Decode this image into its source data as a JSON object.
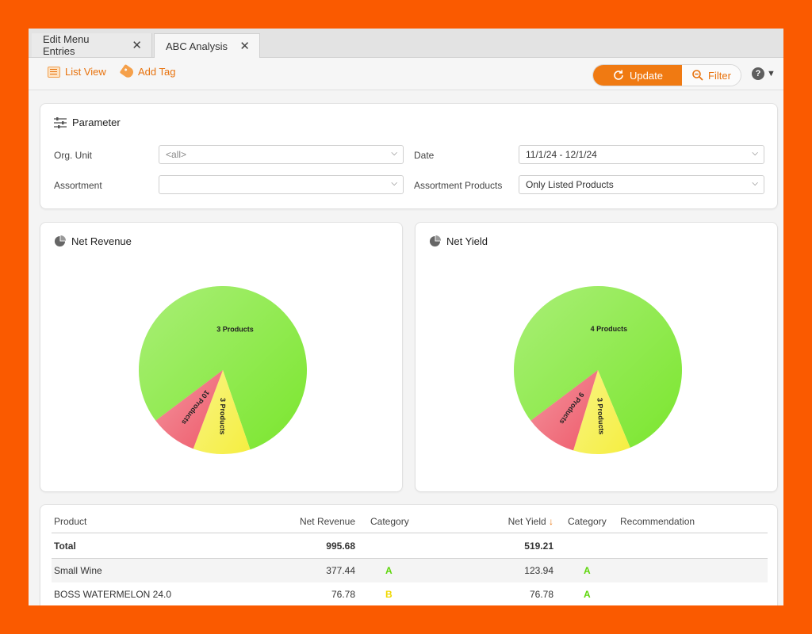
{
  "tabs": [
    {
      "label": "Edit Menu Entries",
      "close": "✕"
    },
    {
      "label": "ABC Analysis",
      "close": "✕"
    }
  ],
  "toolbar": {
    "list_view": "List View",
    "add_tag": "Add Tag",
    "update": "Update",
    "filter": "Filter",
    "help": "?"
  },
  "parameter": {
    "title": "Parameter",
    "org_unit_label": "Org. Unit",
    "org_unit_value": "<all>",
    "date_label": "Date",
    "date_value": "11/1/24 - 12/1/24",
    "assortment_label": "Assortment",
    "assortment_value": "",
    "assortment_products_label": "Assortment Products",
    "assortment_products_value": "Only Listed Products"
  },
  "charts": {
    "net_revenue_title": "Net Revenue",
    "net_yield_title": "Net Yield"
  },
  "colors": {
    "brand": "#f07a12",
    "cat_a": "#7be62e",
    "cat_b": "#f5ee40",
    "cat_c": "#ee5a6a"
  },
  "chart_data": [
    {
      "type": "pie",
      "title": "Net Revenue",
      "slices": [
        {
          "category": "A",
          "label": "3 Products",
          "value": 3,
          "share_pct": 80,
          "color": "#7be62e"
        },
        {
          "category": "B",
          "label": "3 Products",
          "value": 3,
          "share_pct": 11,
          "color": "#f5ee40"
        },
        {
          "category": "C",
          "label": "10 Products",
          "value": 10,
          "share_pct": 9,
          "color": "#ee5a6a"
        }
      ]
    },
    {
      "type": "pie",
      "title": "Net Yield",
      "slices": [
        {
          "category": "A",
          "label": "4 Products",
          "value": 4,
          "share_pct": 79,
          "color": "#7be62e"
        },
        {
          "category": "B",
          "label": "3 Products",
          "value": 3,
          "share_pct": 11,
          "color": "#f5ee40"
        },
        {
          "category": "C",
          "label": "9 Products",
          "value": 9,
          "share_pct": 10,
          "color": "#ee5a6a"
        }
      ]
    }
  ],
  "table": {
    "headers": {
      "product": "Product",
      "net_revenue": "Net Revenue",
      "category": "Category",
      "net_yield": "Net Yield",
      "sort_arrow": "↓",
      "category2": "Category",
      "recommendation": "Recommendation"
    },
    "total": {
      "label": "Total",
      "net_revenue": "995.68",
      "net_yield": "519.21"
    },
    "rows": [
      {
        "product": "Small Wine",
        "net_revenue": "377.44",
        "cat_rev": "A",
        "net_yield": "123.94",
        "cat_yield": "A",
        "recommendation": ""
      },
      {
        "product": "BOSS WATERMELON 24.0",
        "net_revenue": "76.78",
        "cat_rev": "B",
        "net_yield": "76.78",
        "cat_yield": "A",
        "recommendation": ""
      }
    ]
  }
}
